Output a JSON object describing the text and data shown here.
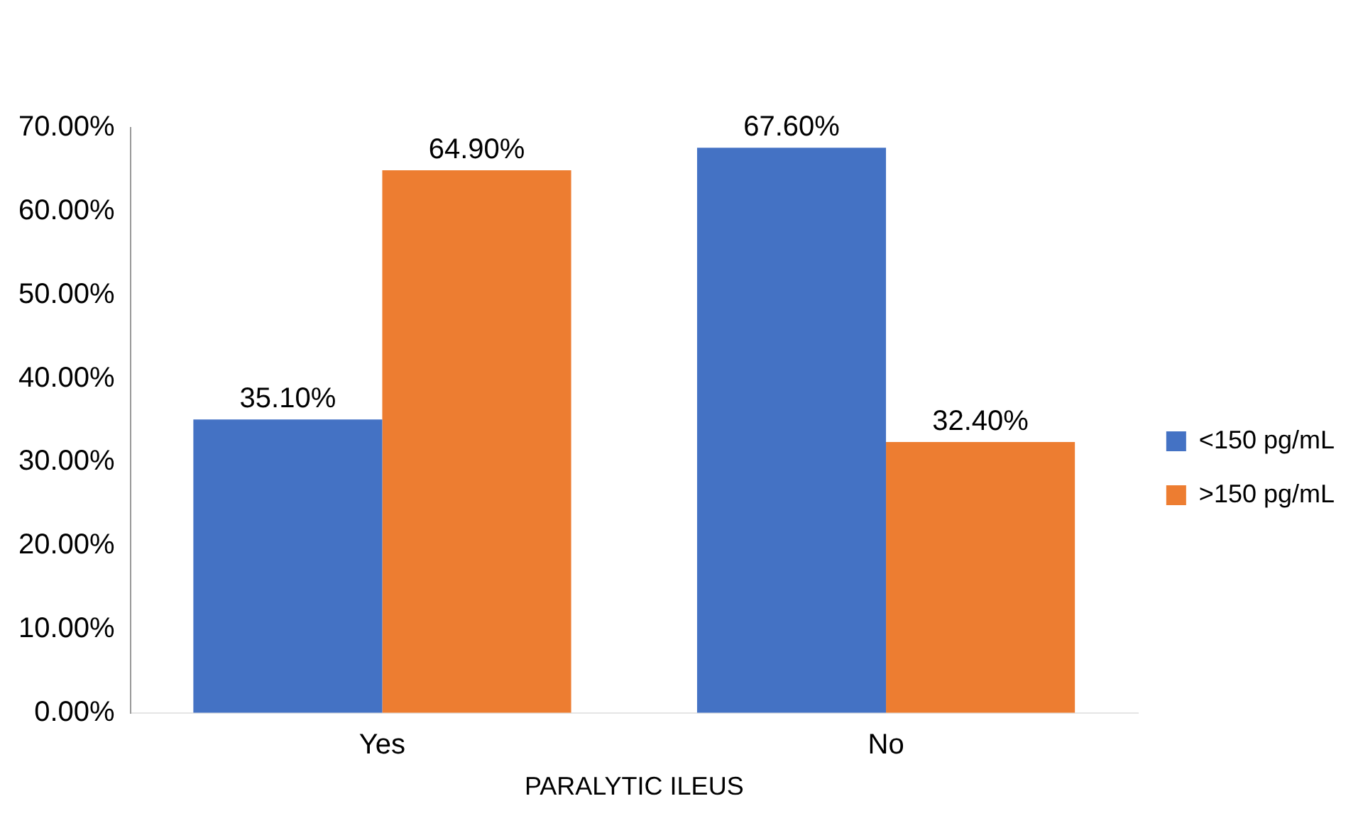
{
  "chart_data": {
    "type": "bar",
    "xlabel": "PARALYTIC ILEUS",
    "categories": [
      "Yes",
      "No"
    ],
    "series": [
      {
        "name": "<150 pg/mL",
        "color": "#4472c4",
        "values": [
          35.1,
          67.6
        ],
        "value_labels": [
          "35.10%",
          "67.60%"
        ]
      },
      {
        "name": ">150 pg/mL",
        "color": "#ed7d31",
        "values": [
          64.9,
          32.4
        ],
        "value_labels": [
          "64.90%",
          "32.40%"
        ]
      }
    ],
    "ylim": [
      0,
      70
    ],
    "yticks": [
      {
        "value": 0,
        "label": "0.00%"
      },
      {
        "value": 10,
        "label": "10.00%"
      },
      {
        "value": 20,
        "label": "20.00%"
      },
      {
        "value": 30,
        "label": "30.00%"
      },
      {
        "value": 40,
        "label": "40.00%"
      },
      {
        "value": 50,
        "label": "50.00%"
      },
      {
        "value": 60,
        "label": "60.00%"
      },
      {
        "value": 70,
        "label": "70.00%"
      }
    ],
    "grid": false,
    "legend": "right"
  }
}
